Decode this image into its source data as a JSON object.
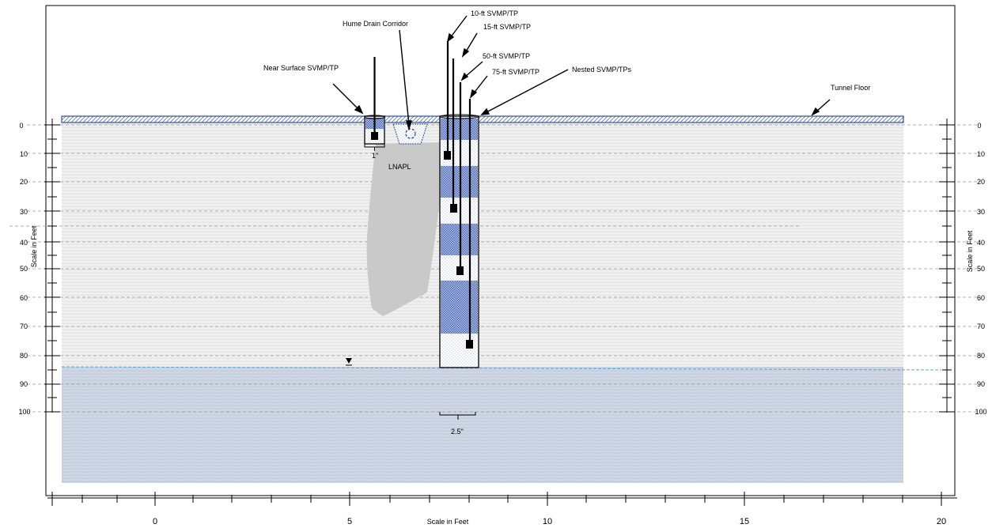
{
  "labels": {
    "hume_drain": "Hume Drain Corridor",
    "near_surface": "Near Surface SVMP/TP",
    "ten_ft": "10-ft SVMP/TP",
    "fifteen_ft": "15-ft SVMP/TP",
    "fifty_ft": "50-ft SVMP/TP",
    "seventyfive_ft": "75-ft SVMP/TP",
    "nested": "Nested SVMP/TPs",
    "tunnel_floor": "Tunnel Floor",
    "lnapl": "LNAPL",
    "one_inch": "1\"",
    "two_half_inch": "2.5\""
  },
  "axes": {
    "left_title": "Scale in Feet",
    "right_title": "Scale in Feet",
    "bottom_title": "Scale in Feet",
    "depth_ticks": [
      "0",
      "10",
      "20",
      "30",
      "40",
      "50",
      "60",
      "70",
      "80",
      "90",
      "100"
    ],
    "bottom_ticks": [
      "0",
      "5",
      "10",
      "15",
      "20"
    ]
  },
  "colors": {
    "soil": "#ececec",
    "groundwater": "#c9d1e0",
    "water_line": "#5fa8d3",
    "sand_pack": "#6a86c9",
    "floor_outline": "#2f4f8f",
    "lnapl": "#c8c8c8"
  }
}
